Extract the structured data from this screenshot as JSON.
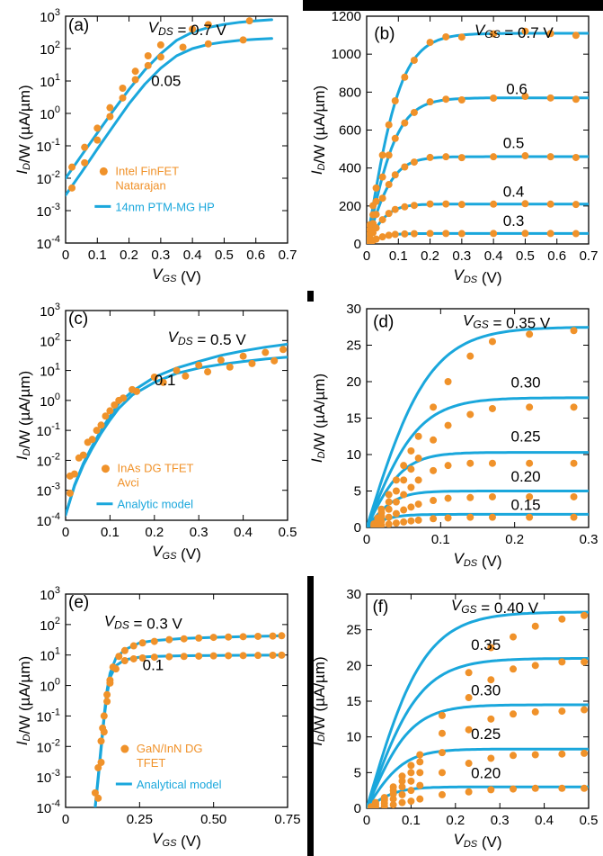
{
  "colors": {
    "model": "#1aa7dc",
    "data": "#f0922a",
    "axis": "#000000",
    "bar": "#000000"
  },
  "chart_data": [
    {
      "id": "a",
      "type": "line",
      "panel_label": "(a)",
      "yscale": "log",
      "xlabel": "V_GS (V)",
      "ylabel": "I_D/W (µA/µm)",
      "xlim": [
        0,
        0.7
      ],
      "ylim": [
        0.0001,
        1000
      ],
      "xticks": [
        "0",
        "0.1",
        "0.2",
        "0.3",
        "0.4",
        "0.5",
        "0.6",
        "0.7"
      ],
      "yticks": [
        {
          "b": "10",
          "e": "3"
        },
        {
          "b": "10",
          "e": "2"
        },
        {
          "b": "10",
          "e": "1"
        },
        {
          "b": "10",
          "e": "0"
        },
        {
          "b": "10",
          "e": "-1"
        },
        {
          "b": "10",
          "e": "-2"
        },
        {
          "b": "10",
          "e": "-3"
        },
        {
          "b": "10",
          "e": "-4"
        }
      ],
      "annotations": [
        {
          "text": "(a)",
          "x": 0.0,
          "y": 2.55
        },
        {
          "text": "V_DS = 0.7 V",
          "x": 0.26,
          "y": 2.5
        },
        {
          "text": "0.05",
          "x": 0.27,
          "y": 0.85
        }
      ],
      "legend": {
        "data": "Intel FinFET\nNatarajan",
        "model": "14nm PTM-MG HP",
        "x": 0.12,
        "y": -1.9
      },
      "series": [
        {
          "name": "V_DS = 0.7 V",
          "model_x": [
            0,
            0.05,
            0.1,
            0.15,
            0.2,
            0.25,
            0.3,
            0.35,
            0.4,
            0.45,
            0.5,
            0.55,
            0.6,
            0.65
          ],
          "model_y": [
            0.01,
            0.05,
            0.25,
            1.2,
            5.5,
            22,
            70,
            180,
            320,
            450,
            560,
            650,
            720,
            780
          ],
          "data_x": [
            0.02,
            0.06,
            0.1,
            0.14,
            0.18,
            0.22,
            0.26,
            0.3,
            0.4,
            0.45,
            0.58
          ],
          "data_y": [
            0.022,
            0.09,
            0.35,
            1.5,
            6,
            20,
            60,
            130,
            400,
            550,
            720
          ]
        },
        {
          "name": "V_DS = 0.05 V",
          "model_x": [
            0,
            0.05,
            0.1,
            0.15,
            0.2,
            0.25,
            0.3,
            0.35,
            0.4,
            0.45,
            0.5,
            0.55,
            0.6,
            0.65
          ],
          "model_y": [
            0.003,
            0.015,
            0.08,
            0.4,
            2,
            8,
            25,
            60,
            100,
            135,
            160,
            180,
            195,
            205
          ],
          "data_x": [
            0.02,
            0.06,
            0.1,
            0.14,
            0.18,
            0.22,
            0.26,
            0.3,
            0.37,
            0.45,
            0.56
          ],
          "data_y": [
            0.005,
            0.03,
            0.15,
            0.8,
            3,
            11,
            30,
            55,
            110,
            140,
            185
          ]
        }
      ]
    },
    {
      "id": "b",
      "type": "line",
      "panel_label": "(b)",
      "yscale": "linear",
      "xlabel": "V_DS (V)",
      "ylabel": "I_D/W (µA/µm)",
      "xlim": [
        0,
        0.7
      ],
      "ylim": [
        0,
        1200
      ],
      "xticks": [
        "0",
        "0.1",
        "0.2",
        "0.3",
        "0.4",
        "0.5",
        "0.6",
        "0.7"
      ],
      "yticks": [
        "0",
        "200",
        "400",
        "600",
        "800",
        "1000",
        "1200"
      ],
      "annotations": [
        {
          "text": "(b)",
          "x": 0.015,
          "y": 1080
        },
        {
          "text": "V_GS = 0.7 V",
          "x": 0.34,
          "y": 1100
        },
        {
          "text": "0.6",
          "x": 0.44,
          "y": 790
        },
        {
          "text": "0.5",
          "x": 0.43,
          "y": 505
        },
        {
          "text": "0.4",
          "x": 0.43,
          "y": 250
        },
        {
          "text": "0.3",
          "x": 0.43,
          "y": 95
        }
      ],
      "series": [
        {
          "name": "V_GS = 0.7 V",
          "isat": 1110,
          "k": 0.11
        },
        {
          "name": "V_GS = 0.6 V",
          "isat": 770,
          "k": 0.1
        },
        {
          "name": "V_GS = 0.5 V",
          "isat": 460,
          "k": 0.085
        },
        {
          "name": "V_GS = 0.4 V",
          "isat": 210,
          "k": 0.07
        },
        {
          "name": "V_GS = 0.3 V",
          "isat": 55,
          "k": 0.06
        }
      ],
      "data_x": [
        0.01,
        0.02,
        0.03,
        0.05,
        0.07,
        0.09,
        0.12,
        0.15,
        0.2,
        0.25,
        0.3,
        0.4,
        0.5,
        0.58,
        0.66
      ]
    },
    {
      "id": "c",
      "type": "line",
      "panel_label": "(c)",
      "yscale": "log",
      "xlabel": "V_GS (V)",
      "ylabel": "I_D/W (µA/µm)",
      "xlim": [
        0,
        0.5
      ],
      "ylim": [
        0.0001,
        1000
      ],
      "xticks": [
        "0",
        "0.1",
        "0.2",
        "0.3",
        "0.4",
        "0.5"
      ],
      "yticks": [
        {
          "b": "10",
          "e": "3"
        },
        {
          "b": "10",
          "e": "2"
        },
        {
          "b": "10",
          "e": "1"
        },
        {
          "b": "10",
          "e": "0"
        },
        {
          "b": "10",
          "e": "-1"
        },
        {
          "b": "10",
          "e": "-2"
        },
        {
          "b": "10",
          "e": "-3"
        },
        {
          "b": "10",
          "e": "-4"
        }
      ],
      "annotations": [
        {
          "text": "(c)",
          "x": 0.0,
          "y": 2.55
        },
        {
          "text": "V_DS = 0.5 V",
          "x": 0.23,
          "y": 1.95
        },
        {
          "text": "0.1",
          "x": 0.2,
          "y": 0.5
        }
      ],
      "legend": {
        "data": "InAs DG TFET\nAvci",
        "model": "Analytic model",
        "x": 0.09,
        "y": -2.4
      },
      "series": [
        {
          "name": "V_DS = 0.5 V",
          "model_x": [
            0,
            0.02,
            0.04,
            0.06,
            0.08,
            0.1,
            0.12,
            0.15,
            0.2,
            0.25,
            0.3,
            0.35,
            0.4,
            0.45,
            0.5
          ],
          "model_y": [
            0.00015,
            0.0015,
            0.008,
            0.03,
            0.1,
            0.3,
            0.8,
            2,
            6,
            12,
            20,
            32,
            45,
            60,
            75
          ],
          "data_x": [
            0.01,
            0.02,
            0.04,
            0.06,
            0.08,
            0.1,
            0.12,
            0.15,
            0.2,
            0.25,
            0.3,
            0.35,
            0.4,
            0.45,
            0.49
          ],
          "data_y": [
            0.0008,
            0.0035,
            0.015,
            0.05,
            0.15,
            0.45,
            1,
            2.3,
            6,
            10,
            15,
            22,
            30,
            40,
            50
          ]
        },
        {
          "name": "V_DS = 0.1 V",
          "model_x": [
            0,
            0.02,
            0.04,
            0.06,
            0.08,
            0.1,
            0.12,
            0.15,
            0.2,
            0.25,
            0.3,
            0.35,
            0.4,
            0.45,
            0.5
          ],
          "model_y": [
            0.00015,
            0.0014,
            0.007,
            0.025,
            0.08,
            0.22,
            0.55,
            1.5,
            4,
            8,
            12,
            16,
            20,
            24,
            28
          ],
          "data_x": [
            0.01,
            0.03,
            0.05,
            0.07,
            0.09,
            0.11,
            0.13,
            0.16,
            0.22,
            0.27,
            0.32,
            0.37,
            0.42,
            0.47
          ],
          "data_y": [
            0.003,
            0.012,
            0.04,
            0.1,
            0.3,
            0.7,
            1.2,
            2,
            4,
            6.5,
            9,
            13,
            17,
            21
          ]
        }
      ]
    },
    {
      "id": "d",
      "type": "line",
      "panel_label": "(d)",
      "yscale": "linear",
      "xlabel": "V_DS (V)",
      "ylabel": "I_D/W (µA/µm)",
      "xlim": [
        0,
        0.3
      ],
      "ylim": [
        0,
        30
      ],
      "xticks": [
        "0",
        "0.1",
        "0.2",
        "0.3"
      ],
      "yticks": [
        "0",
        "5",
        "10",
        "15",
        "20",
        "25",
        "30"
      ],
      "annotations": [
        {
          "text": "(d)",
          "x": 0.005,
          "y": 27.5
        },
        {
          "text": "V_GS = 0.35 V",
          "x": 0.13,
          "y": 27.7
        },
        {
          "text": "0.30",
          "x": 0.195,
          "y": 19.2
        },
        {
          "text": "0.25",
          "x": 0.195,
          "y": 11.8
        },
        {
          "text": "0.20",
          "x": 0.195,
          "y": 6.3
        },
        {
          "text": "0.15",
          "x": 0.195,
          "y": 2.4
        }
      ],
      "series": [
        {
          "name": "V_GS = 0.35 V",
          "isat": 27.5,
          "k": 0.085,
          "data_y": [
            0.5,
            1.3,
            2.5,
            4.5,
            6.5,
            8.5,
            10.5,
            12.5,
            16.5,
            20,
            23.5,
            25.5,
            26.5,
            27
          ]
        },
        {
          "name": "V_GS = 0.30 V",
          "isat": 17.8,
          "k": 0.07,
          "data_y": [
            0.4,
            1,
            2,
            3.5,
            5,
            6.5,
            8,
            9.5,
            12,
            14,
            15.5,
            16.3,
            16.5,
            16.5
          ]
        },
        {
          "name": "V_GS = 0.25 V",
          "isat": 10.3,
          "k": 0.05,
          "data_y": [
            0.3,
            0.8,
            1.5,
            2.5,
            3.5,
            4.5,
            5.5,
            6.5,
            7.8,
            8.5,
            8.8,
            8.8,
            8.8,
            8.8
          ]
        },
        {
          "name": "V_GS = 0.20 V",
          "isat": 5,
          "k": 0.04,
          "data_y": [
            0.2,
            0.5,
            0.9,
            1.4,
            1.9,
            2.4,
            2.8,
            3.2,
            3.7,
            4,
            4.1,
            4.2,
            4.2,
            4.2
          ]
        },
        {
          "name": "V_GS = 0.15 V",
          "isat": 1.8,
          "k": 0.035,
          "data_y": [
            0.05,
            0.15,
            0.3,
            0.45,
            0.6,
            0.75,
            0.9,
            1,
            1.2,
            1.3,
            1.4,
            1.4,
            1.4,
            1.4
          ]
        }
      ],
      "data_x": [
        0.01,
        0.015,
        0.02,
        0.03,
        0.04,
        0.05,
        0.06,
        0.07,
        0.09,
        0.11,
        0.14,
        0.17,
        0.22,
        0.28
      ]
    },
    {
      "id": "e",
      "type": "line",
      "panel_label": "(e)",
      "yscale": "log",
      "xlabel": "V_GS (V)",
      "ylabel": "I_D/W (µA/µm)",
      "xlim": [
        0,
        0.75
      ],
      "ylim": [
        0.0001,
        1000
      ],
      "xticks": [
        "0",
        "0.25",
        "0.50",
        "0.75"
      ],
      "yticks": [
        {
          "b": "10",
          "e": "3"
        },
        {
          "b": "10",
          "e": "2"
        },
        {
          "b": "10",
          "e": "1"
        },
        {
          "b": "10",
          "e": "0"
        },
        {
          "b": "10",
          "e": "-1"
        },
        {
          "b": "10",
          "e": "-2"
        },
        {
          "b": "10",
          "e": "-3"
        },
        {
          "b": "10",
          "e": "-4"
        }
      ],
      "annotations": [
        {
          "text": "(e)",
          "x": 0.0,
          "y": 2.55
        },
        {
          "text": "V_DS = 0.3 V",
          "x": 0.13,
          "y": 1.95
        },
        {
          "text": "0.1",
          "x": 0.26,
          "y": 0.5
        }
      ],
      "legend": {
        "data": "GaN/InN DG\nTFET",
        "model": "Analytical model",
        "x": 0.2,
        "y": -2.2
      },
      "series": [
        {
          "name": "V_DS = 0.3 V",
          "model_x": [
            0.1,
            0.11,
            0.12,
            0.13,
            0.14,
            0.15,
            0.17,
            0.2,
            0.25,
            0.3,
            0.4,
            0.5,
            0.6,
            0.7,
            0.73
          ],
          "model_y": [
            0.0001,
            0.001,
            0.01,
            0.1,
            0.7,
            2.5,
            8,
            15,
            25,
            30,
            35,
            38,
            40,
            42,
            43
          ],
          "data_x": [
            0.1,
            0.11,
            0.12,
            0.125,
            0.13,
            0.14,
            0.15,
            0.16,
            0.18,
            0.2,
            0.23,
            0.26,
            0.3,
            0.35,
            0.4,
            0.45,
            0.5,
            0.55,
            0.6,
            0.65,
            0.7,
            0.73
          ],
          "data_y": [
            0.0003,
            0.002,
            0.015,
            0.04,
            0.1,
            0.5,
            1.5,
            4,
            9,
            14,
            20,
            25,
            28,
            32,
            34,
            36,
            38,
            39,
            40,
            41,
            42,
            43
          ]
        },
        {
          "name": "V_DS = 0.1 V",
          "model_x": [
            0.1,
            0.11,
            0.12,
            0.13,
            0.14,
            0.15,
            0.17,
            0.2,
            0.25,
            0.3,
            0.4,
            0.5,
            0.6,
            0.7,
            0.73
          ],
          "model_y": [
            0.0001,
            0.0008,
            0.008,
            0.08,
            0.5,
            1.8,
            4.5,
            7,
            8.5,
            9,
            9.5,
            9.7,
            9.8,
            9.9,
            10
          ],
          "data_x": [
            0.11,
            0.12,
            0.13,
            0.14,
            0.15,
            0.17,
            0.2,
            0.23,
            0.26,
            0.3,
            0.35,
            0.4,
            0.45,
            0.5,
            0.55,
            0.6,
            0.65,
            0.7,
            0.73
          ],
          "data_y": [
            0.0002,
            0.003,
            0.03,
            0.3,
            1.2,
            3.5,
            6.5,
            7.5,
            8,
            8.5,
            8.8,
            9,
            9.2,
            9.4,
            9.5,
            9.6,
            9.7,
            9.8,
            9.9
          ]
        }
      ]
    },
    {
      "id": "f",
      "type": "line",
      "panel_label": "(f)",
      "yscale": "linear",
      "xlabel": "V_DS (V)",
      "ylabel": "I_D/W (µA/µm)",
      "xlim": [
        0,
        0.5
      ],
      "ylim": [
        0,
        30
      ],
      "xticks": [
        "0",
        "0.1",
        "0.2",
        "0.3",
        "0.4",
        "0.5"
      ],
      "yticks": [
        "0",
        "5",
        "10",
        "15",
        "20",
        "25",
        "30"
      ],
      "annotations": [
        {
          "text": "(f)",
          "x": 0.007,
          "y": 27.5
        },
        {
          "text": "V_GS = 0.40 V",
          "x": 0.19,
          "y": 27.7
        },
        {
          "text": "0.35",
          "x": 0.235,
          "y": 22.2
        },
        {
          "text": "0.30",
          "x": 0.235,
          "y": 15.8
        },
        {
          "text": "0.25",
          "x": 0.235,
          "y": 9.7
        },
        {
          "text": "0.20",
          "x": 0.235,
          "y": 4.2
        }
      ],
      "series": [
        {
          "name": "V_GS = 0.40 V",
          "isat": 27.5,
          "k": 0.13,
          "data_y": [
            0.2,
            0.8,
            1.5,
            3,
            4.5,
            6,
            7.5,
            13,
            19,
            22.5,
            24,
            25.5,
            26.5,
            27
          ]
        },
        {
          "name": "V_GS = 0.35 V",
          "isat": 21,
          "k": 0.12,
          "data_y": [
            0.2,
            0.7,
            1.3,
            2.5,
            3.8,
            5,
            6.5,
            10.5,
            15.5,
            18,
            19.5,
            20,
            20.5,
            20.5
          ]
        },
        {
          "name": "V_GS = 0.30 V",
          "isat": 14.5,
          "k": 0.1,
          "data_y": [
            0.2,
            0.6,
            1.1,
            2,
            3,
            3.8,
            5,
            7.8,
            11,
            12.5,
            13.2,
            13.5,
            13.6,
            13.8
          ]
        },
        {
          "name": "V_GS = 0.25 V",
          "isat": 8.3,
          "k": 0.085,
          "data_y": [
            0.1,
            0.4,
            0.7,
            1.3,
            1.9,
            2.5,
            3.2,
            5,
            6.3,
            7,
            7.4,
            7.5,
            7.6,
            7.7
          ]
        },
        {
          "name": "V_GS = 0.20 V",
          "isat": 3,
          "k": 0.07,
          "data_y": [
            0.05,
            0.15,
            0.3,
            0.5,
            0.8,
            1,
            1.3,
            1.9,
            2.3,
            2.6,
            2.7,
            2.8,
            2.8,
            2.8
          ]
        }
      ],
      "data_x": [
        0.01,
        0.02,
        0.04,
        0.06,
        0.08,
        0.1,
        0.12,
        0.17,
        0.23,
        0.28,
        0.33,
        0.38,
        0.44,
        0.49
      ]
    }
  ]
}
